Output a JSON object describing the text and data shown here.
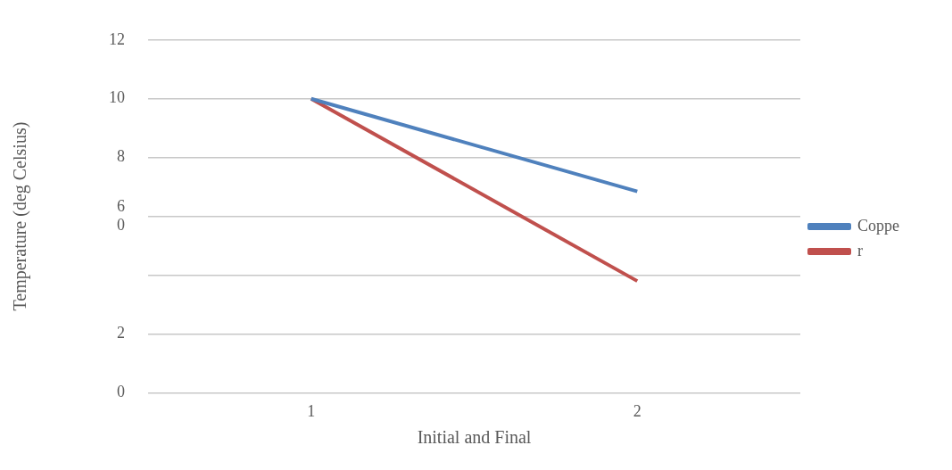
{
  "chart_data": {
    "type": "line",
    "xlabel": "Initial and Final",
    "ylabel": "Temperature (deg Celsius)",
    "categories": [
      "1",
      "2"
    ],
    "series": [
      {
        "name": "Coppe",
        "color": "#4f81bd",
        "values": [
          10,
          6.85
        ]
      },
      {
        "name": "r",
        "color": "#c0504d",
        "values": [
          10,
          3.8
        ]
      }
    ],
    "ylim": [
      0,
      12
    ],
    "yticks": [
      0,
      2,
      {
        "value": 4,
        "label": null
      },
      {
        "value": 6,
        "label": "6\n0"
      },
      8,
      10,
      12
    ],
    "grid": "y",
    "legend": "right",
    "marker": "none",
    "line_style": "solid"
  }
}
